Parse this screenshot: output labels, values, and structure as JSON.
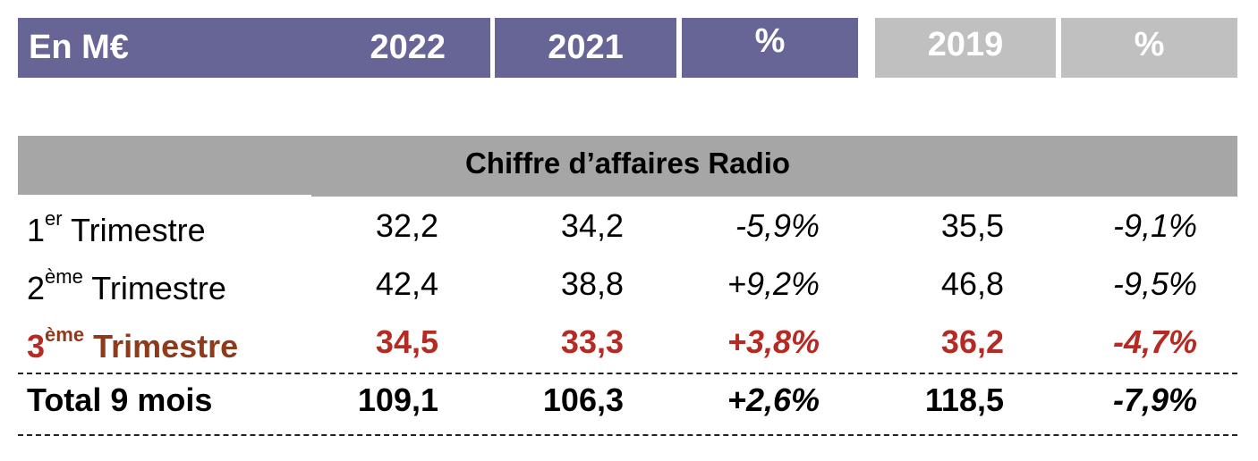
{
  "header": {
    "unit": "En M€",
    "col_2022": "2022",
    "col_2021": "2021",
    "col_pct": "%",
    "col_2019": "2019",
    "col_pct2": "%"
  },
  "section_title": "Chiffre d’affaires Radio",
  "rows": [
    {
      "num": "1",
      "sup": "er",
      "label": "Trimestre",
      "v2022": "32,2",
      "v2021": "34,2",
      "pct": "-5,9%",
      "v2019": "35,5",
      "pct2019": "-9,1%"
    },
    {
      "num": "2",
      "sup": "ème",
      "label": "Trimestre",
      "v2022": "42,4",
      "v2021": "38,8",
      "pct": "+9,2%",
      "v2019": "46,8",
      "pct2019": "-9,5%"
    },
    {
      "num": "3",
      "sup": "ème",
      "label": "Trimestre",
      "v2022": "34,5",
      "v2021": "33,3",
      "pct": "+3,8%",
      "v2019": "36,2",
      "pct2019": "-4,7%"
    }
  ],
  "total": {
    "label": "Total 9 mois",
    "v2022": "109,1",
    "v2021": "106,3",
    "pct": "+2,6%",
    "v2019": "118,5",
    "pct2019": "-7,9%"
  },
  "colors": {
    "header_purple": "#676595",
    "header_gray": "#c0c0c0",
    "band": "#a6a6a6",
    "highlight_red": "#b52a23",
    "highlight_brown": "#8f3a1a"
  }
}
